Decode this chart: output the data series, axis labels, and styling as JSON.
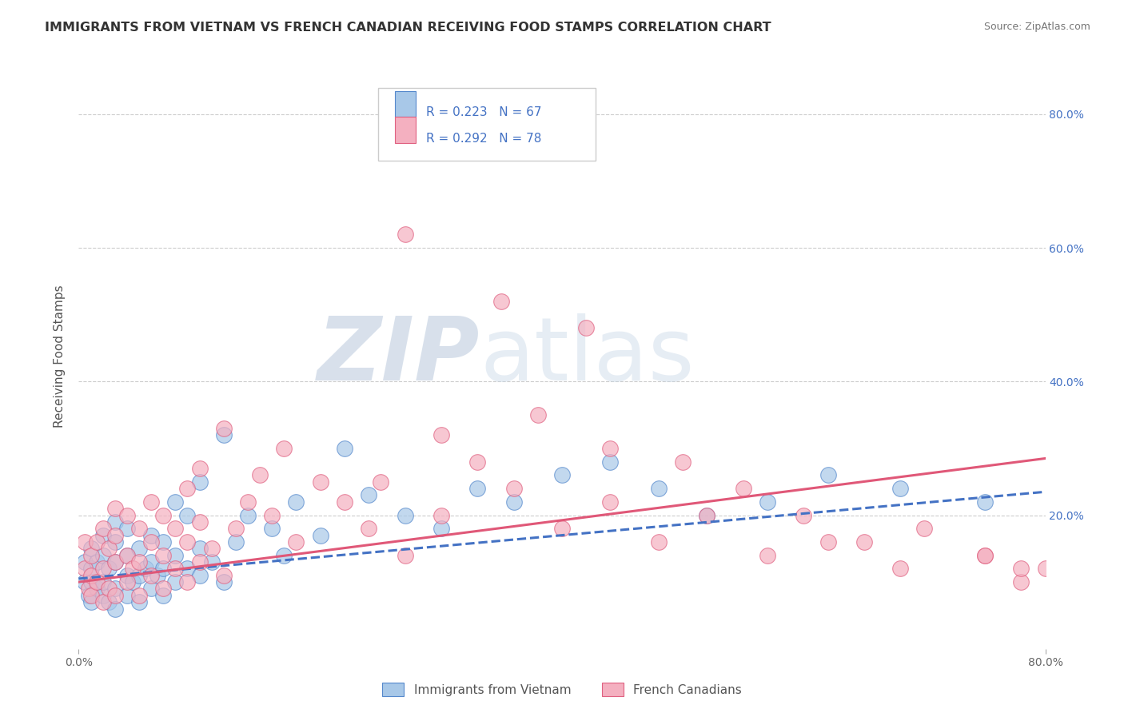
{
  "title": "IMMIGRANTS FROM VIETNAM VS FRENCH CANADIAN RECEIVING FOOD STAMPS CORRELATION CHART",
  "source_text": "Source: ZipAtlas.com",
  "ylabel": "Receiving Food Stamps",
  "legend_blue_label": "Immigrants from Vietnam",
  "legend_pink_label": "French Canadians",
  "r_blue": 0.223,
  "n_blue": 67,
  "r_pink": 0.292,
  "n_pink": 78,
  "blue_color": "#a8c8e8",
  "pink_color": "#f4b0c0",
  "blue_edge_color": "#5588cc",
  "pink_edge_color": "#e06080",
  "blue_line_color": "#4472c4",
  "pink_line_color": "#e05878",
  "xlim": [
    0.0,
    0.8
  ],
  "ylim": [
    0.0,
    0.875
  ],
  "y_ticks_right": [
    0.2,
    0.4,
    0.6,
    0.8
  ],
  "y_tick_labels_right": [
    "20.0%",
    "40.0%",
    "60.0%",
    "80.0%"
  ],
  "watermark_zip": "ZIP",
  "watermark_atlas": "atlas",
  "title_fontsize": 11.5,
  "axis_label_fontsize": 11,
  "tick_fontsize": 10,
  "blue_trend_x0": 0.0,
  "blue_trend_y0": 0.105,
  "blue_trend_x1": 0.8,
  "blue_trend_y1": 0.235,
  "pink_trend_x0": 0.0,
  "pink_trend_y0": 0.1,
  "pink_trend_x1": 0.8,
  "pink_trend_y1": 0.285,
  "blue_scatter_x": [
    0.005,
    0.005,
    0.008,
    0.01,
    0.01,
    0.01,
    0.01,
    0.015,
    0.015,
    0.02,
    0.02,
    0.02,
    0.02,
    0.025,
    0.025,
    0.03,
    0.03,
    0.03,
    0.03,
    0.03,
    0.04,
    0.04,
    0.04,
    0.04,
    0.045,
    0.05,
    0.05,
    0.05,
    0.055,
    0.06,
    0.06,
    0.06,
    0.065,
    0.07,
    0.07,
    0.07,
    0.08,
    0.08,
    0.08,
    0.09,
    0.09,
    0.1,
    0.1,
    0.1,
    0.11,
    0.12,
    0.12,
    0.13,
    0.14,
    0.16,
    0.17,
    0.18,
    0.2,
    0.22,
    0.24,
    0.27,
    0.3,
    0.33,
    0.36,
    0.4,
    0.44,
    0.48,
    0.52,
    0.57,
    0.62,
    0.68,
    0.75
  ],
  "blue_scatter_y": [
    0.1,
    0.13,
    0.08,
    0.07,
    0.1,
    0.12,
    0.15,
    0.09,
    0.13,
    0.08,
    0.1,
    0.14,
    0.17,
    0.07,
    0.12,
    0.06,
    0.09,
    0.13,
    0.16,
    0.19,
    0.08,
    0.11,
    0.14,
    0.18,
    0.1,
    0.07,
    0.11,
    0.15,
    0.12,
    0.09,
    0.13,
    0.17,
    0.11,
    0.08,
    0.12,
    0.16,
    0.1,
    0.14,
    0.22,
    0.12,
    0.2,
    0.11,
    0.15,
    0.25,
    0.13,
    0.1,
    0.32,
    0.16,
    0.2,
    0.18,
    0.14,
    0.22,
    0.17,
    0.3,
    0.23,
    0.2,
    0.18,
    0.24,
    0.22,
    0.26,
    0.28,
    0.24,
    0.2,
    0.22,
    0.26,
    0.24,
    0.22
  ],
  "pink_scatter_x": [
    0.005,
    0.005,
    0.008,
    0.01,
    0.01,
    0.01,
    0.015,
    0.015,
    0.02,
    0.02,
    0.02,
    0.025,
    0.025,
    0.03,
    0.03,
    0.03,
    0.03,
    0.04,
    0.04,
    0.04,
    0.045,
    0.05,
    0.05,
    0.05,
    0.06,
    0.06,
    0.06,
    0.07,
    0.07,
    0.07,
    0.08,
    0.08,
    0.09,
    0.09,
    0.09,
    0.1,
    0.1,
    0.1,
    0.11,
    0.12,
    0.12,
    0.13,
    0.14,
    0.15,
    0.16,
    0.17,
    0.18,
    0.2,
    0.22,
    0.24,
    0.27,
    0.3,
    0.33,
    0.36,
    0.4,
    0.44,
    0.48,
    0.52,
    0.57,
    0.62,
    0.68,
    0.75,
    0.78,
    0.8,
    0.27,
    0.35,
    0.42,
    0.3,
    0.25,
    0.38,
    0.44,
    0.5,
    0.55,
    0.6,
    0.65,
    0.7,
    0.75,
    0.78
  ],
  "pink_scatter_y": [
    0.12,
    0.16,
    0.09,
    0.08,
    0.11,
    0.14,
    0.1,
    0.16,
    0.07,
    0.12,
    0.18,
    0.09,
    0.15,
    0.08,
    0.13,
    0.17,
    0.21,
    0.1,
    0.14,
    0.2,
    0.12,
    0.08,
    0.13,
    0.18,
    0.11,
    0.16,
    0.22,
    0.09,
    0.14,
    0.2,
    0.12,
    0.18,
    0.1,
    0.16,
    0.24,
    0.13,
    0.19,
    0.27,
    0.15,
    0.11,
    0.33,
    0.18,
    0.22,
    0.26,
    0.2,
    0.3,
    0.16,
    0.25,
    0.22,
    0.18,
    0.14,
    0.2,
    0.28,
    0.24,
    0.18,
    0.22,
    0.16,
    0.2,
    0.14,
    0.16,
    0.12,
    0.14,
    0.1,
    0.12,
    0.62,
    0.52,
    0.48,
    0.32,
    0.25,
    0.35,
    0.3,
    0.28,
    0.24,
    0.2,
    0.16,
    0.18,
    0.14,
    0.12
  ]
}
